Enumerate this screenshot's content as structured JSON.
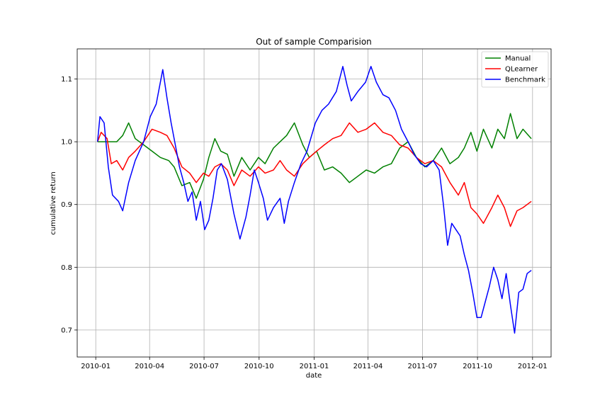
{
  "chart_data": {
    "type": "line",
    "title": "Out of sample Comparision",
    "xlabel": "date",
    "ylabel": "cumulative return",
    "xlim": [
      "2009-12-01",
      "2012-02-01"
    ],
    "ylim": [
      0.657,
      1.148
    ],
    "grid": true,
    "legend_position": "top-right",
    "x_ticks": [
      {
        "date": "2010-01-01",
        "label": "2010-01"
      },
      {
        "date": "2010-04-01",
        "label": "2010-04"
      },
      {
        "date": "2010-07-01",
        "label": "2010-07"
      },
      {
        "date": "2010-10-01",
        "label": "2010-10"
      },
      {
        "date": "2011-01-01",
        "label": "2011-01"
      },
      {
        "date": "2011-04-01",
        "label": "2011-04"
      },
      {
        "date": "2011-07-01",
        "label": "2011-07"
      },
      {
        "date": "2011-10-01",
        "label": "2011-10"
      },
      {
        "date": "2012-01-01",
        "label": "2012-01"
      }
    ],
    "y_ticks": [
      {
        "value": 0.7,
        "label": "0.7"
      },
      {
        "value": 0.8,
        "label": "0.8"
      },
      {
        "value": 0.9,
        "label": "0.9"
      },
      {
        "value": 1.0,
        "label": "1.0"
      },
      {
        "value": 1.1,
        "label": "1.1"
      }
    ],
    "series": [
      {
        "name": "Manual",
        "color": "#008000",
        "points": [
          [
            "2010-01-04",
            1.0
          ],
          [
            "2010-01-25",
            1.0
          ],
          [
            "2010-02-05",
            1.0
          ],
          [
            "2010-02-15",
            1.01
          ],
          [
            "2010-02-25",
            1.03
          ],
          [
            "2010-03-08",
            1.005
          ],
          [
            "2010-03-22",
            0.995
          ],
          [
            "2010-04-05",
            0.985
          ],
          [
            "2010-04-19",
            0.975
          ],
          [
            "2010-05-03",
            0.97
          ],
          [
            "2010-05-12",
            0.96
          ],
          [
            "2010-05-25",
            0.93
          ],
          [
            "2010-06-07",
            0.935
          ],
          [
            "2010-06-18",
            0.91
          ],
          [
            "2010-06-30",
            0.94
          ],
          [
            "2010-07-09",
            0.975
          ],
          [
            "2010-07-19",
            1.005
          ],
          [
            "2010-07-29",
            0.985
          ],
          [
            "2010-08-09",
            0.98
          ],
          [
            "2010-08-20",
            0.945
          ],
          [
            "2010-09-02",
            0.975
          ],
          [
            "2010-09-16",
            0.955
          ],
          [
            "2010-09-30",
            0.975
          ],
          [
            "2010-10-11",
            0.965
          ],
          [
            "2010-10-25",
            0.99
          ],
          [
            "2010-11-05",
            1.0
          ],
          [
            "2010-11-16",
            1.01
          ],
          [
            "2010-11-29",
            1.03
          ],
          [
            "2010-12-13",
            0.995
          ],
          [
            "2010-12-24",
            0.975
          ],
          [
            "2011-01-05",
            0.985
          ],
          [
            "2011-01-18",
            0.955
          ],
          [
            "2011-02-01",
            0.96
          ],
          [
            "2011-02-15",
            0.95
          ],
          [
            "2011-03-01",
            0.935
          ],
          [
            "2011-03-15",
            0.945
          ],
          [
            "2011-03-29",
            0.955
          ],
          [
            "2011-04-12",
            0.95
          ],
          [
            "2011-04-26",
            0.96
          ],
          [
            "2011-05-10",
            0.965
          ],
          [
            "2011-05-24",
            0.99
          ],
          [
            "2011-06-07",
            1.0
          ],
          [
            "2011-06-21",
            0.975
          ],
          [
            "2011-07-05",
            0.96
          ],
          [
            "2011-07-19",
            0.97
          ],
          [
            "2011-08-02",
            0.99
          ],
          [
            "2011-08-16",
            0.965
          ],
          [
            "2011-08-30",
            0.975
          ],
          [
            "2011-09-09",
            0.99
          ],
          [
            "2011-09-20",
            1.015
          ],
          [
            "2011-09-30",
            0.985
          ],
          [
            "2011-10-11",
            1.02
          ],
          [
            "2011-10-25",
            0.99
          ],
          [
            "2011-11-04",
            1.02
          ],
          [
            "2011-11-15",
            1.005
          ],
          [
            "2011-11-25",
            1.045
          ],
          [
            "2011-12-06",
            1.005
          ],
          [
            "2011-12-16",
            1.02
          ],
          [
            "2011-12-30",
            1.005
          ]
        ]
      },
      {
        "name": "QLearner",
        "color": "#ff0000",
        "points": [
          [
            "2010-01-04",
            1.0
          ],
          [
            "2010-01-10",
            1.015
          ],
          [
            "2010-01-20",
            1.005
          ],
          [
            "2010-01-27",
            0.965
          ],
          [
            "2010-02-05",
            0.97
          ],
          [
            "2010-02-15",
            0.955
          ],
          [
            "2010-02-25",
            0.975
          ],
          [
            "2010-03-08",
            0.985
          ],
          [
            "2010-03-22",
            1.0
          ],
          [
            "2010-04-05",
            1.02
          ],
          [
            "2010-04-19",
            1.015
          ],
          [
            "2010-04-30",
            1.01
          ],
          [
            "2010-05-12",
            0.99
          ],
          [
            "2010-05-25",
            0.96
          ],
          [
            "2010-06-07",
            0.95
          ],
          [
            "2010-06-18",
            0.935
          ],
          [
            "2010-06-30",
            0.95
          ],
          [
            "2010-07-09",
            0.945
          ],
          [
            "2010-07-19",
            0.96
          ],
          [
            "2010-07-29",
            0.965
          ],
          [
            "2010-08-09",
            0.955
          ],
          [
            "2010-08-20",
            0.93
          ],
          [
            "2010-09-02",
            0.955
          ],
          [
            "2010-09-16",
            0.945
          ],
          [
            "2010-09-30",
            0.96
          ],
          [
            "2010-10-11",
            0.95
          ],
          [
            "2010-10-25",
            0.955
          ],
          [
            "2010-11-05",
            0.97
          ],
          [
            "2010-11-16",
            0.955
          ],
          [
            "2010-11-29",
            0.945
          ],
          [
            "2010-12-13",
            0.965
          ],
          [
            "2010-12-24",
            0.975
          ],
          [
            "2011-01-05",
            0.985
          ],
          [
            "2011-01-18",
            0.995
          ],
          [
            "2011-02-01",
            1.005
          ],
          [
            "2011-02-15",
            1.01
          ],
          [
            "2011-03-01",
            1.03
          ],
          [
            "2011-03-15",
            1.015
          ],
          [
            "2011-03-29",
            1.02
          ],
          [
            "2011-04-12",
            1.03
          ],
          [
            "2011-04-26",
            1.015
          ],
          [
            "2011-05-10",
            1.01
          ],
          [
            "2011-05-24",
            0.995
          ],
          [
            "2011-06-07",
            0.99
          ],
          [
            "2011-06-21",
            0.975
          ],
          [
            "2011-07-05",
            0.965
          ],
          [
            "2011-07-19",
            0.97
          ],
          [
            "2011-08-02",
            0.96
          ],
          [
            "2011-08-16",
            0.935
          ],
          [
            "2011-08-30",
            0.915
          ],
          [
            "2011-09-09",
            0.935
          ],
          [
            "2011-09-20",
            0.895
          ],
          [
            "2011-09-30",
            0.885
          ],
          [
            "2011-10-11",
            0.87
          ],
          [
            "2011-10-25",
            0.895
          ],
          [
            "2011-11-04",
            0.915
          ],
          [
            "2011-11-15",
            0.895
          ],
          [
            "2011-11-25",
            0.865
          ],
          [
            "2011-12-06",
            0.89
          ],
          [
            "2011-12-16",
            0.895
          ],
          [
            "2011-12-30",
            0.905
          ]
        ]
      },
      {
        "name": "Benchmark",
        "color": "#0000ff",
        "points": [
          [
            "2010-01-04",
            1.0
          ],
          [
            "2010-01-08",
            1.04
          ],
          [
            "2010-01-15",
            1.03
          ],
          [
            "2010-01-22",
            0.96
          ],
          [
            "2010-01-29",
            0.915
          ],
          [
            "2010-02-08",
            0.905
          ],
          [
            "2010-02-15",
            0.89
          ],
          [
            "2010-02-25",
            0.935
          ],
          [
            "2010-03-08",
            0.97
          ],
          [
            "2010-03-22",
            1.0
          ],
          [
            "2010-04-02",
            1.04
          ],
          [
            "2010-04-12",
            1.06
          ],
          [
            "2010-04-23",
            1.115
          ],
          [
            "2010-04-30",
            1.07
          ],
          [
            "2010-05-07",
            1.03
          ],
          [
            "2010-05-14",
            0.995
          ],
          [
            "2010-05-21",
            0.96
          ],
          [
            "2010-05-28",
            0.935
          ],
          [
            "2010-06-04",
            0.905
          ],
          [
            "2010-06-11",
            0.92
          ],
          [
            "2010-06-18",
            0.875
          ],
          [
            "2010-06-25",
            0.905
          ],
          [
            "2010-07-02",
            0.86
          ],
          [
            "2010-07-09",
            0.875
          ],
          [
            "2010-07-16",
            0.91
          ],
          [
            "2010-07-23",
            0.955
          ],
          [
            "2010-07-30",
            0.965
          ],
          [
            "2010-08-09",
            0.94
          ],
          [
            "2010-08-20",
            0.885
          ],
          [
            "2010-08-30",
            0.845
          ],
          [
            "2010-09-09",
            0.88
          ],
          [
            "2010-09-16",
            0.915
          ],
          [
            "2010-09-23",
            0.955
          ],
          [
            "2010-09-30",
            0.935
          ],
          [
            "2010-10-08",
            0.91
          ],
          [
            "2010-10-15",
            0.875
          ],
          [
            "2010-10-25",
            0.895
          ],
          [
            "2010-11-05",
            0.91
          ],
          [
            "2010-11-12",
            0.87
          ],
          [
            "2010-11-19",
            0.905
          ],
          [
            "2010-11-29",
            0.935
          ],
          [
            "2010-12-10",
            0.965
          ],
          [
            "2010-12-20",
            0.985
          ],
          [
            "2011-01-03",
            1.03
          ],
          [
            "2011-01-14",
            1.05
          ],
          [
            "2011-01-25",
            1.06
          ],
          [
            "2011-02-07",
            1.08
          ],
          [
            "2011-02-18",
            1.12
          ],
          [
            "2011-02-25",
            1.09
          ],
          [
            "2011-03-04",
            1.065
          ],
          [
            "2011-03-15",
            1.08
          ],
          [
            "2011-03-28",
            1.095
          ],
          [
            "2011-04-06",
            1.12
          ],
          [
            "2011-04-15",
            1.095
          ],
          [
            "2011-04-26",
            1.075
          ],
          [
            "2011-05-06",
            1.07
          ],
          [
            "2011-05-17",
            1.05
          ],
          [
            "2011-05-27",
            1.02
          ],
          [
            "2011-06-07",
            1.0
          ],
          [
            "2011-06-17",
            0.98
          ],
          [
            "2011-06-28",
            0.965
          ],
          [
            "2011-07-08",
            0.96
          ],
          [
            "2011-07-19",
            0.97
          ],
          [
            "2011-07-29",
            0.955
          ],
          [
            "2011-08-05",
            0.9
          ],
          [
            "2011-08-12",
            0.835
          ],
          [
            "2011-08-19",
            0.87
          ],
          [
            "2011-08-26",
            0.86
          ],
          [
            "2011-09-02",
            0.85
          ],
          [
            "2011-09-09",
            0.82
          ],
          [
            "2011-09-16",
            0.795
          ],
          [
            "2011-09-23",
            0.76
          ],
          [
            "2011-09-30",
            0.72
          ],
          [
            "2011-10-07",
            0.72
          ],
          [
            "2011-10-14",
            0.745
          ],
          [
            "2011-10-21",
            0.77
          ],
          [
            "2011-10-28",
            0.8
          ],
          [
            "2011-11-04",
            0.78
          ],
          [
            "2011-11-11",
            0.75
          ],
          [
            "2011-11-18",
            0.79
          ],
          [
            "2011-11-25",
            0.74
          ],
          [
            "2011-12-02",
            0.695
          ],
          [
            "2011-12-09",
            0.76
          ],
          [
            "2011-12-16",
            0.765
          ],
          [
            "2011-12-23",
            0.79
          ],
          [
            "2011-12-30",
            0.795
          ]
        ]
      }
    ]
  }
}
